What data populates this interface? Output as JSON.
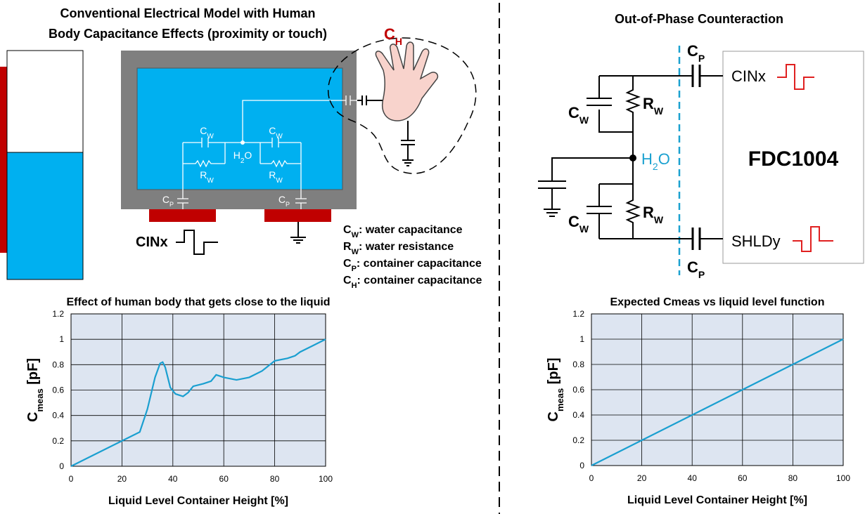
{
  "left_diagram": {
    "title": [
      "Conventional Electrical Model with Human",
      "Body Capacitance Effects (proximity or touch)"
    ],
    "c_h": [
      "C",
      "H"
    ],
    "c_w_left": [
      "C",
      "W"
    ],
    "c_w_right": [
      "C",
      "W"
    ],
    "h2o": [
      "H",
      "2",
      "O"
    ],
    "r_w_left": [
      "R",
      "W"
    ],
    "r_w_right": [
      "R",
      "W"
    ],
    "c_p_left": [
      "C",
      "P"
    ],
    "c_p_right": [
      "C",
      "P"
    ],
    "cinx": "CINx",
    "legend": [
      [
        "C",
        "W",
        ": water capacitance"
      ],
      [
        "R",
        "W",
        ": water resistance"
      ],
      [
        "C",
        "P",
        ": container capacitance"
      ],
      [
        "C",
        "H",
        ": container capacitance"
      ]
    ]
  },
  "right_diagram": {
    "title": "Out-of-Phase Counteraction",
    "c_p_top": [
      "C",
      "P"
    ],
    "c_w_top": [
      "C",
      "W"
    ],
    "r_w_top": [
      "R",
      "W"
    ],
    "h2o": [
      "H",
      "2",
      "O"
    ],
    "c_w_bottom": [
      "C",
      "W"
    ],
    "r_w_bottom": [
      "R",
      "W"
    ],
    "c_p_bottom": [
      "C",
      "P"
    ],
    "cinx": "CINx",
    "chip": "FDC1004",
    "shldy": "SHLDy"
  },
  "chart_data": [
    {
      "type": "line",
      "title": "Effect of human body that gets close to the liquid",
      "xlabel": "Liquid Level Container Height [%]",
      "ylabel": [
        "C",
        "meas",
        " [pF]"
      ],
      "x": [
        0,
        20,
        27,
        30,
        33,
        35,
        36,
        37,
        39,
        41,
        44,
        46,
        48,
        52,
        55,
        57,
        60,
        65,
        70,
        75,
        80,
        85,
        88,
        90,
        95,
        100
      ],
      "values": [
        0,
        0.2,
        0.27,
        0.45,
        0.7,
        0.81,
        0.82,
        0.78,
        0.62,
        0.57,
        0.55,
        0.58,
        0.63,
        0.65,
        0.67,
        0.72,
        0.7,
        0.68,
        0.7,
        0.75,
        0.83,
        0.85,
        0.87,
        0.9,
        0.95,
        1
      ],
      "color": "#1a9fd0",
      "xlim": [
        0,
        100
      ],
      "ylim": [
        0,
        1.2
      ],
      "xticks": [
        0,
        20,
        40,
        60,
        80,
        100
      ],
      "yticks": [
        0,
        0.2,
        0.4,
        0.6,
        0.8,
        1,
        1.2
      ],
      "grid": true
    },
    {
      "type": "line",
      "title": "Expected Cmeas vs liquid level function",
      "xlabel": "Liquid Level Container Height [%]",
      "ylabel": [
        "C",
        "meas",
        " [pF]"
      ],
      "x": [
        0,
        100
      ],
      "values": [
        0,
        1
      ],
      "color": "#1a9fd0",
      "xlim": [
        0,
        100
      ],
      "ylim": [
        0,
        1.2
      ],
      "xticks": [
        0,
        20,
        40,
        60,
        80,
        100
      ],
      "yticks": [
        0,
        0.2,
        0.4,
        0.6,
        0.8,
        1,
        1.2
      ],
      "grid": true
    }
  ]
}
